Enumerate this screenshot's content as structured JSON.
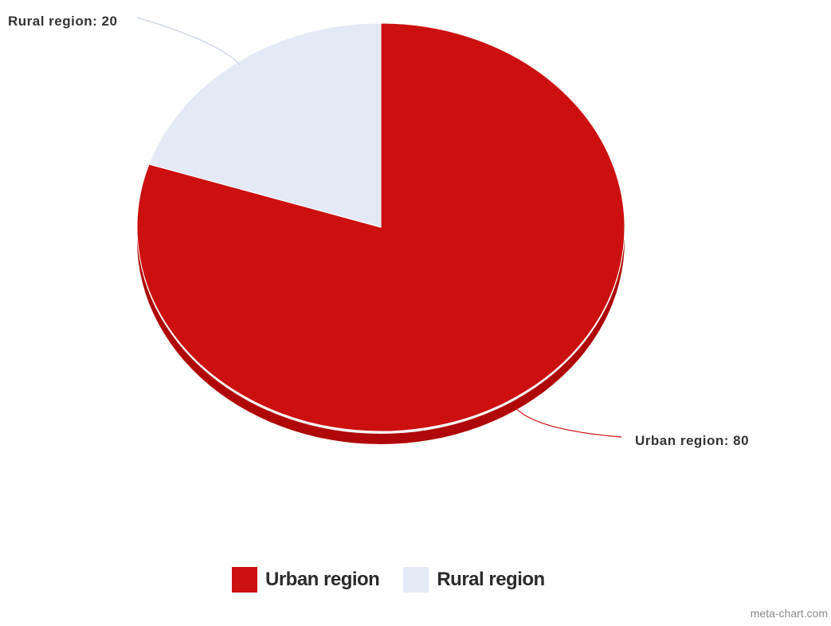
{
  "chart_data": {
    "type": "pie",
    "title": "",
    "slices": [
      {
        "label": "Urban region",
        "value": 80,
        "color": "#cc1010",
        "data_label": "Urban region: 80"
      },
      {
        "label": "Rural region",
        "value": 20,
        "color": "#e3e9f5",
        "data_label": "Rural region: 20"
      }
    ],
    "legend": {
      "placement": "bottom-center",
      "items": [
        {
          "label": "Urban region",
          "color": "#cc1010"
        },
        {
          "label": "Rural region",
          "color": "#e3e9f5"
        }
      ]
    },
    "style": "3d"
  },
  "colors": {
    "urban": "#cc1010",
    "urban_side": "#b00808",
    "rural": "#e3e9f5",
    "rural_side": "#c9d2e4"
  },
  "credit": "meta-chart.com"
}
